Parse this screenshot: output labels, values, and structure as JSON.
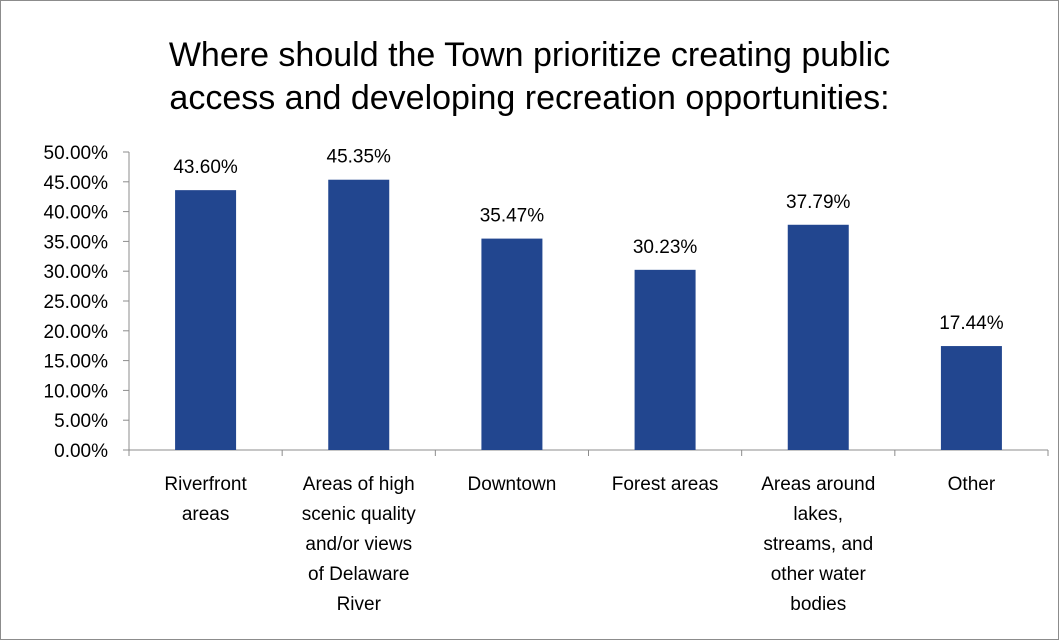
{
  "chart_data": {
    "type": "bar",
    "title_lines": [
      "Where should the Town prioritize creating public",
      "access and developing recreation opportunities:"
    ],
    "categories": [
      [
        "Riverfront",
        "areas"
      ],
      [
        "Areas of high",
        "scenic quality",
        "and/or views",
        "of Delaware",
        "River"
      ],
      [
        "Downtown"
      ],
      [
        "Forest areas"
      ],
      [
        "Areas around",
        "lakes,",
        "streams, and",
        "other water",
        "bodies"
      ],
      [
        "Other"
      ]
    ],
    "values": [
      43.6,
      45.35,
      35.47,
      30.23,
      37.79,
      17.44
    ],
    "data_labels": [
      "43.60%",
      "45.35%",
      "35.47%",
      "30.23%",
      "37.79%",
      "17.44%"
    ],
    "y_ticks": [
      "0.00%",
      "5.00%",
      "10.00%",
      "15.00%",
      "20.00%",
      "25.00%",
      "30.00%",
      "35.00%",
      "40.00%",
      "45.00%",
      "50.00%"
    ],
    "ylim": [
      0,
      50
    ],
    "grid": false,
    "legend": "none",
    "bar_color": "#22468f",
    "axis_color": "#8c8c8c"
  }
}
